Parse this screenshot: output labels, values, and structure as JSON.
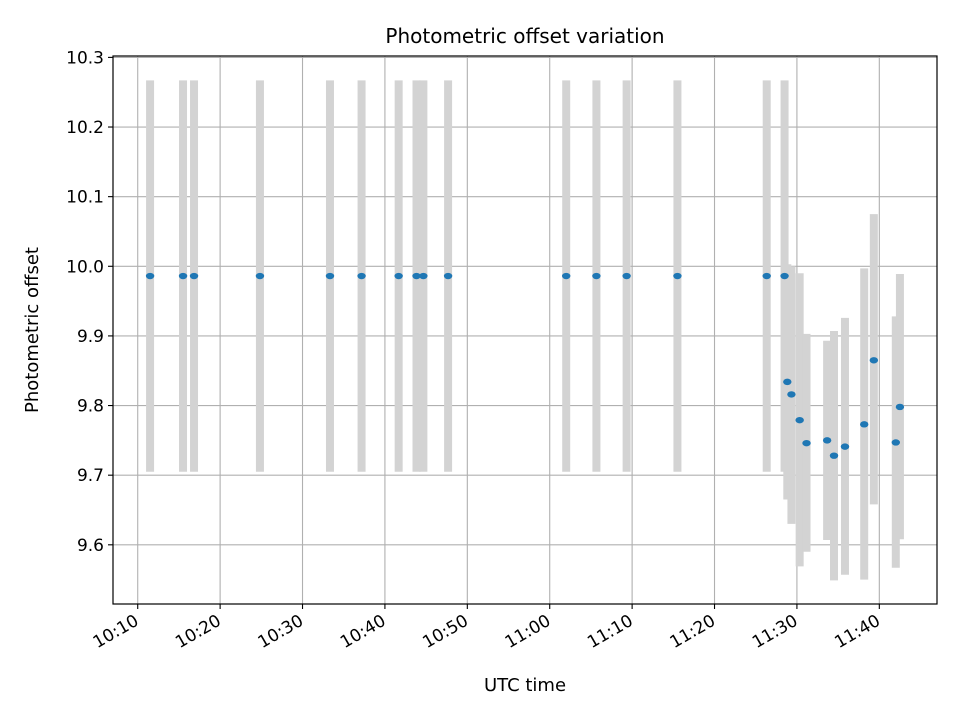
{
  "chart_data": {
    "type": "scatter",
    "title": "Photometric offset variation",
    "xlabel": "UTC time",
    "ylabel": "Photometric offset",
    "xlim": [
      "10:07",
      "11:47"
    ],
    "ylim": [
      9.515,
      10.302
    ],
    "x_ticks": [
      "10:10",
      "10:20",
      "10:30",
      "10:40",
      "10:50",
      "11:00",
      "11:10",
      "11:20",
      "11:30",
      "11:40"
    ],
    "y_ticks": [
      "9.6",
      "9.7",
      "9.8",
      "9.9",
      "10.0",
      "10.1",
      "10.2",
      "10.3"
    ],
    "grid": true,
    "colors": {
      "point": "#1f77b4",
      "errorbar": "#d3d3d3",
      "grid": "#b0b0b0"
    },
    "points": [
      {
        "x": "10:11:30",
        "y": 9.986,
        "y_low": 9.705,
        "y_high": 10.267
      },
      {
        "x": "10:15:30",
        "y": 9.986,
        "y_low": 9.705,
        "y_high": 10.267
      },
      {
        "x": "10:16:50",
        "y": 9.986,
        "y_low": 9.705,
        "y_high": 10.267
      },
      {
        "x": "10:24:50",
        "y": 9.986,
        "y_low": 9.705,
        "y_high": 10.267
      },
      {
        "x": "10:33:20",
        "y": 9.986,
        "y_low": 9.705,
        "y_high": 10.267
      },
      {
        "x": "10:37:10",
        "y": 9.986,
        "y_low": 9.705,
        "y_high": 10.267
      },
      {
        "x": "10:41:40",
        "y": 9.986,
        "y_low": 9.705,
        "y_high": 10.267
      },
      {
        "x": "10:43:50",
        "y": 9.986,
        "y_low": 9.705,
        "y_high": 10.267
      },
      {
        "x": "10:44:40",
        "y": 9.986,
        "y_low": 9.705,
        "y_high": 10.267
      },
      {
        "x": "10:47:40",
        "y": 9.986,
        "y_low": 9.705,
        "y_high": 10.267
      },
      {
        "x": "11:02:00",
        "y": 9.986,
        "y_low": 9.705,
        "y_high": 10.267
      },
      {
        "x": "11:05:40",
        "y": 9.986,
        "y_low": 9.705,
        "y_high": 10.267
      },
      {
        "x": "11:09:20",
        "y": 9.986,
        "y_low": 9.705,
        "y_high": 10.267
      },
      {
        "x": "11:15:30",
        "y": 9.986,
        "y_low": 9.705,
        "y_high": 10.267
      },
      {
        "x": "11:26:20",
        "y": 9.986,
        "y_low": 9.705,
        "y_high": 10.267
      },
      {
        "x": "11:28:30",
        "y": 9.986,
        "y_low": 9.705,
        "y_high": 10.267
      },
      {
        "x": "11:28:50",
        "y": 9.834,
        "y_low": 9.665,
        "y_high": 10.003
      },
      {
        "x": "11:29:20",
        "y": 9.816,
        "y_low": 9.63,
        "y_high": 10.0
      },
      {
        "x": "11:30:20",
        "y": 9.779,
        "y_low": 9.569,
        "y_high": 9.99
      },
      {
        "x": "11:31:10",
        "y": 9.746,
        "y_low": 9.59,
        "y_high": 9.903
      },
      {
        "x": "11:33:40",
        "y": 9.75,
        "y_low": 9.607,
        "y_high": 9.893
      },
      {
        "x": "11:34:30",
        "y": 9.728,
        "y_low": 9.549,
        "y_high": 9.907
      },
      {
        "x": "11:35:50",
        "y": 9.741,
        "y_low": 9.557,
        "y_high": 9.926
      },
      {
        "x": "11:38:10",
        "y": 9.773,
        "y_low": 9.55,
        "y_high": 9.997
      },
      {
        "x": "11:39:20",
        "y": 9.865,
        "y_low": 9.658,
        "y_high": 10.075
      },
      {
        "x": "11:42:00",
        "y": 9.747,
        "y_low": 9.567,
        "y_high": 9.928
      },
      {
        "x": "11:42:30",
        "y": 9.798,
        "y_low": 9.608,
        "y_high": 9.989
      }
    ]
  }
}
